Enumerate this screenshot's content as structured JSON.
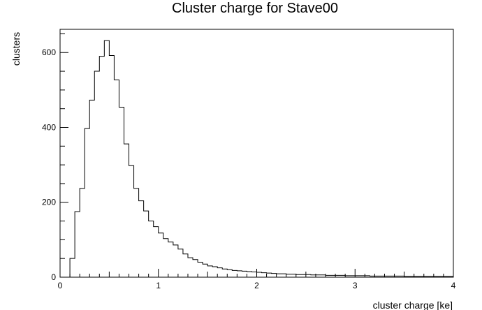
{
  "chart_data": {
    "type": "histogram",
    "title": "Cluster charge for Stave00",
    "xlabel": "cluster charge [ke]",
    "ylabel": "clusters",
    "xlim": [
      0,
      4
    ],
    "ylim": [
      0,
      662
    ],
    "x_ticks": [
      0,
      1,
      2,
      3,
      4
    ],
    "x_tick_labels": [
      "0",
      "1",
      "2",
      "3",
      "4"
    ],
    "y_ticks": [
      0,
      200,
      400,
      600
    ],
    "y_tick_labels": [
      "0",
      "200",
      "400",
      "600"
    ],
    "legend": "none",
    "grid": false,
    "bin_width": 0.05,
    "x_start": 0,
    "values": [
      0,
      0,
      50,
      175,
      237,
      397,
      473,
      550,
      590,
      632,
      592,
      527,
      454,
      356,
      298,
      237,
      204,
      177,
      150,
      135,
      118,
      103,
      94,
      86,
      75,
      62,
      52,
      47,
      40,
      35,
      30,
      28,
      25,
      22,
      20,
      18,
      17,
      16,
      15,
      14,
      13,
      12,
      11,
      10,
      9,
      9,
      8,
      8,
      7,
      7,
      7,
      6,
      6,
      6,
      5,
      5,
      5,
      5,
      4,
      4,
      4,
      4,
      4,
      3,
      3,
      3,
      3,
      3,
      3,
      3,
      2,
      2,
      2,
      2,
      2,
      2,
      2,
      2,
      2,
      2
    ]
  }
}
